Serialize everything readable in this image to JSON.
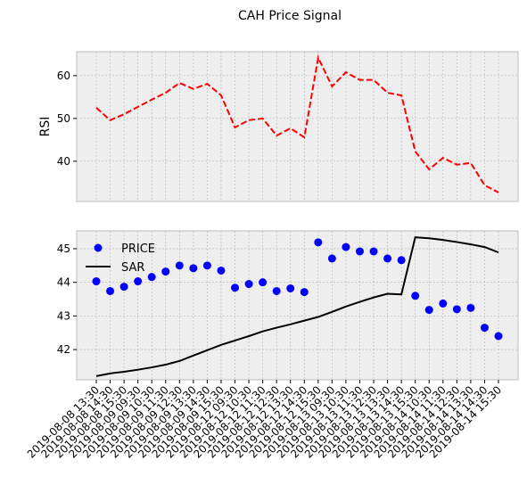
{
  "chart_data": [
    {
      "type": "line",
      "title": "CAH Price Signal",
      "ylabel": "RSI",
      "color": "#ff0000",
      "linestyle": "dashed",
      "values": [
        52.5,
        49.6,
        51.0,
        52.7,
        54.4,
        56.0,
        58.3,
        56.9,
        58.1,
        55.4,
        47.9,
        49.6,
        50.0,
        46.0,
        47.7,
        45.6,
        64.2,
        57.5,
        60.8,
        59.0,
        59.0,
        56.0,
        55.4,
        42.3,
        38.1,
        40.8,
        39.2,
        39.6,
        34.4,
        32.7
      ],
      "ylim": [
        30.6,
        65.6
      ],
      "yticks": [
        40,
        50,
        60
      ],
      "grid": true
    },
    {
      "type": "line",
      "categories": [
        "2019-08-08 13:30",
        "2019-08-08 14:30",
        "2019-08-08 15:30",
        "2019-08-09 09:30",
        "2019-08-09 10:30",
        "2019-08-09 11:30",
        "2019-08-09 12:30",
        "2019-08-09 13:30",
        "2019-08-09 14:30",
        "2019-08-09 15:30",
        "2019-08-12 09:30",
        "2019-08-12 10:30",
        "2019-08-12 11:30",
        "2019-08-12 12:30",
        "2019-08-12 13:30",
        "2019-08-12 14:30",
        "2019-08-12 15:30",
        "2019-08-13 09:30",
        "2019-08-13 10:30",
        "2019-08-13 11:30",
        "2019-08-13 12:30",
        "2019-08-13 13:30",
        "2019-08-13 14:30",
        "2019-08-13 15:30",
        "2019-08-14 10:30",
        "2019-08-14 11:30",
        "2019-08-14 12:30",
        "2019-08-14 13:30",
        "2019-08-14 14:30",
        "2019-08-14 15:30"
      ],
      "series": [
        {
          "name": "PRICE",
          "color": "#0000ff",
          "mode": "markers",
          "values": [
            44.03,
            43.74,
            43.87,
            44.03,
            44.16,
            44.32,
            44.5,
            44.42,
            44.5,
            44.35,
            43.84,
            43.95,
            44.0,
            43.74,
            43.82,
            43.71,
            45.19,
            44.71,
            45.05,
            44.92,
            44.92,
            44.71,
            44.66,
            43.6,
            43.18,
            43.37,
            43.2,
            43.24,
            42.65,
            42.4
          ]
        },
        {
          "name": "SAR",
          "color": "#000000",
          "mode": "line",
          "values": [
            41.21,
            41.29,
            41.34,
            41.4,
            41.47,
            41.55,
            41.66,
            41.82,
            41.98,
            42.14,
            42.27,
            42.4,
            42.54,
            42.65,
            42.75,
            42.86,
            42.97,
            43.12,
            43.28,
            43.42,
            43.55,
            43.66,
            43.64,
            45.34,
            45.31,
            45.26,
            45.2,
            45.13,
            45.05,
            44.89
          ]
        }
      ],
      "ylim": [
        41.1,
        45.53
      ],
      "yticks": [
        42,
        43,
        44,
        45
      ],
      "grid": true,
      "legend": "upper left"
    }
  ]
}
